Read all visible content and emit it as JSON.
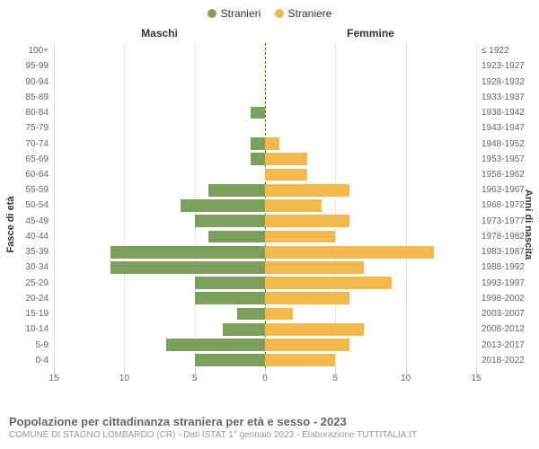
{
  "legend": {
    "male": {
      "label": "Stranieri",
      "color": "#7ba05b"
    },
    "female": {
      "label": "Straniere",
      "color": "#f2b84b"
    }
  },
  "column_titles": {
    "left": "Maschi",
    "right": "Femmine"
  },
  "y_title_left": "Fasce di età",
  "y_title_right": "Anni di nascita",
  "footer": {
    "title": "Popolazione per cittadinanza straniera per età e sesso - 2023",
    "subtitle": "COMUNE DI STAGNO LOMBARDO (CR) - Dati ISTAT 1° gennaio 2023 - Elaborazione TUTTITALIA.IT"
  },
  "chart": {
    "type": "population-pyramid",
    "xmax": 15,
    "xticks": [
      15,
      10,
      5,
      0,
      5,
      10,
      15
    ],
    "background_color": "#ffffff",
    "grid_color": "#e6e6e6",
    "center_line_color": "#666600",
    "bar_colors": {
      "male": "#7ba05b",
      "female": "#f2b84b"
    },
    "rows": [
      {
        "age": "100+",
        "birth": "≤ 1922",
        "m": 0,
        "f": 0
      },
      {
        "age": "95-99",
        "birth": "1923-1927",
        "m": 0,
        "f": 0
      },
      {
        "age": "90-94",
        "birth": "1928-1932",
        "m": 0,
        "f": 0
      },
      {
        "age": "85-89",
        "birth": "1933-1937",
        "m": 0,
        "f": 0
      },
      {
        "age": "80-84",
        "birth": "1938-1942",
        "m": 1,
        "f": 0
      },
      {
        "age": "75-79",
        "birth": "1943-1947",
        "m": 0,
        "f": 0
      },
      {
        "age": "70-74",
        "birth": "1948-1952",
        "m": 1,
        "f": 1
      },
      {
        "age": "65-69",
        "birth": "1953-1957",
        "m": 1,
        "f": 3
      },
      {
        "age": "60-64",
        "birth": "1958-1962",
        "m": 0,
        "f": 3
      },
      {
        "age": "55-59",
        "birth": "1963-1967",
        "m": 4,
        "f": 6
      },
      {
        "age": "50-54",
        "birth": "1968-1972",
        "m": 6,
        "f": 4
      },
      {
        "age": "45-49",
        "birth": "1973-1977",
        "m": 5,
        "f": 6
      },
      {
        "age": "40-44",
        "birth": "1978-1982",
        "m": 4,
        "f": 5
      },
      {
        "age": "35-39",
        "birth": "1983-1987",
        "m": 11,
        "f": 12
      },
      {
        "age": "30-34",
        "birth": "1988-1992",
        "m": 11,
        "f": 7
      },
      {
        "age": "25-29",
        "birth": "1993-1997",
        "m": 5,
        "f": 9
      },
      {
        "age": "20-24",
        "birth": "1998-2002",
        "m": 5,
        "f": 6
      },
      {
        "age": "15-19",
        "birth": "2003-2007",
        "m": 2,
        "f": 2
      },
      {
        "age": "10-14",
        "birth": "2008-2012",
        "m": 3,
        "f": 7
      },
      {
        "age": "5-9",
        "birth": "2013-2017",
        "m": 7,
        "f": 6
      },
      {
        "age": "0-4",
        "birth": "2018-2022",
        "m": 5,
        "f": 5
      }
    ]
  }
}
